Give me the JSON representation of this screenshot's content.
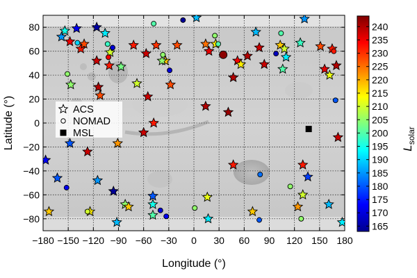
{
  "chart_data": {
    "type": "scatter",
    "xlabel": "Longitude (°)",
    "ylabel": "Latitude (°)",
    "xlim": [
      -180,
      180
    ],
    "ylim": [
      -90,
      90
    ],
    "xticks": [
      -180,
      -150,
      -120,
      -90,
      -60,
      -30,
      0,
      30,
      60,
      90,
      120,
      150,
      180
    ],
    "yticks": [
      -80,
      -60,
      -40,
      -20,
      0,
      20,
      40,
      60,
      80
    ],
    "grid": true,
    "background": "Mars topographic map (shaded relief)",
    "colorbar": {
      "label": "L",
      "label_sub": "solar",
      "min": 163,
      "max": 244,
      "ticks": [
        165,
        170,
        175,
        180,
        185,
        190,
        195,
        200,
        205,
        210,
        215,
        220,
        225,
        230,
        235,
        240
      ],
      "colormap": "jet"
    },
    "legend": {
      "placement": "center-left",
      "entries": [
        {
          "label": "ACS",
          "marker": "star"
        },
        {
          "label": "NOMAD",
          "marker": "circle"
        },
        {
          "label": "MSL",
          "marker": "square"
        }
      ]
    },
    "series": [
      {
        "name": "ACS",
        "marker": "star",
        "points": [
          {
            "lon": -158,
            "lat": 72,
            "ls": 185
          },
          {
            "lon": -154,
            "lat": 77,
            "ls": 195
          },
          {
            "lon": -148,
            "lat": 68,
            "ls": 235
          },
          {
            "lon": -140,
            "lat": 79,
            "ls": 172
          },
          {
            "lon": -135,
            "lat": 62,
            "ls": 232
          },
          {
            "lon": -131,
            "lat": 66,
            "ls": 228
          },
          {
            "lon": -116,
            "lat": 80,
            "ls": 166
          },
          {
            "lon": -106,
            "lat": 75,
            "ls": 192
          },
          {
            "lon": -100,
            "lat": 59,
            "ls": 210
          },
          {
            "lon": -116,
            "lat": 52,
            "ls": 238
          },
          {
            "lon": -101,
            "lat": 48,
            "ls": 232
          },
          {
            "lon": -87,
            "lat": 47,
            "ls": 203
          },
          {
            "lon": -72,
            "lat": 65,
            "ls": 232
          },
          {
            "lon": -57,
            "lat": 58,
            "ls": 238
          },
          {
            "lon": -45,
            "lat": 65,
            "ls": 230
          },
          {
            "lon": -34,
            "lat": 52,
            "ls": 218
          },
          {
            "lon": -20,
            "lat": 65,
            "ls": 228
          },
          {
            "lon": 3,
            "lat": 88,
            "ls": 188
          },
          {
            "lon": 14,
            "lat": 66,
            "ls": 225
          },
          {
            "lon": 18,
            "lat": 60,
            "ls": 236
          },
          {
            "lon": 26,
            "lat": 66,
            "ls": 215
          },
          {
            "lon": 47,
            "lat": 38,
            "ls": 240
          },
          {
            "lon": 52,
            "lat": 52,
            "ls": 235
          },
          {
            "lon": 56,
            "lat": 49,
            "ls": 215
          },
          {
            "lon": 64,
            "lat": 56,
            "ls": 240
          },
          {
            "lon": 74,
            "lat": 76,
            "ls": 188
          },
          {
            "lon": 78,
            "lat": 63,
            "ls": 238
          },
          {
            "lon": 84,
            "lat": 49,
            "ls": 238
          },
          {
            "lon": 103,
            "lat": 65,
            "ls": 218
          },
          {
            "lon": 108,
            "lat": 62,
            "ls": 210
          },
          {
            "lon": 106,
            "lat": 45,
            "ls": 200
          },
          {
            "lon": 110,
            "lat": 55,
            "ls": 192
          },
          {
            "lon": 127,
            "lat": 67,
            "ls": 198
          },
          {
            "lon": 132,
            "lat": 87,
            "ls": 185
          },
          {
            "lon": 151,
            "lat": 64,
            "ls": 228
          },
          {
            "lon": 156,
            "lat": 45,
            "ls": 236
          },
          {
            "lon": 162,
            "lat": 40,
            "ls": 212
          },
          {
            "lon": 165,
            "lat": 62,
            "ls": 232
          },
          {
            "lon": 170,
            "lat": 48,
            "ls": 240
          },
          {
            "lon": -147,
            "lat": 32,
            "ls": 205
          },
          {
            "lon": -114,
            "lat": 30,
            "ls": 240
          },
          {
            "lon": -112,
            "lat": 23,
            "ls": 228
          },
          {
            "lon": -68,
            "lat": 33,
            "ls": 210
          },
          {
            "lon": -55,
            "lat": 22,
            "ls": 238
          },
          {
            "lon": -38,
            "lat": 52,
            "ls": 205
          },
          {
            "lon": -28,
            "lat": 32,
            "ls": 228
          },
          {
            "lon": 14,
            "lat": 14,
            "ls": 240
          },
          {
            "lon": 41,
            "lat": 9,
            "ls": 242
          },
          {
            "lon": -60,
            "lat": -8,
            "ls": 238
          },
          {
            "lon": -48,
            "lat": 0,
            "ls": 232
          },
          {
            "lon": -148,
            "lat": -17,
            "ls": 180
          },
          {
            "lon": -91,
            "lat": -17,
            "ls": 222
          },
          {
            "lon": -127,
            "lat": -24,
            "ls": 238
          },
          {
            "lon": 172,
            "lat": -12,
            "ls": 238
          },
          {
            "lon": -177,
            "lat": -31,
            "ls": 172
          },
          {
            "lon": -163,
            "lat": -46,
            "ls": 180
          },
          {
            "lon": -115,
            "lat": -48,
            "ls": 185
          },
          {
            "lon": -96,
            "lat": -57,
            "ls": 165
          },
          {
            "lon": 47,
            "lat": -35,
            "ls": 232
          },
          {
            "lon": 130,
            "lat": -35,
            "ls": 232
          },
          {
            "lon": 136,
            "lat": -45,
            "ls": 178
          },
          {
            "lon": -173,
            "lat": -74,
            "ls": 218
          },
          {
            "lon": -124,
            "lat": -74,
            "ls": 215
          },
          {
            "lon": -92,
            "lat": -83,
            "ls": 188
          },
          {
            "lon": -82,
            "lat": -68,
            "ls": 205
          },
          {
            "lon": -78,
            "lat": -70,
            "ls": 218
          },
          {
            "lon": -49,
            "lat": -61,
            "ls": 180
          },
          {
            "lon": -49,
            "lat": -68,
            "ls": 195
          },
          {
            "lon": -49,
            "lat": -77,
            "ls": 200
          },
          {
            "lon": 16,
            "lat": -62,
            "ls": 212
          },
          {
            "lon": 17,
            "lat": -80,
            "ls": 192
          },
          {
            "lon": 70,
            "lat": -74,
            "ls": 218
          },
          {
            "lon": 124,
            "lat": -70,
            "ls": 222
          },
          {
            "lon": 130,
            "lat": -60,
            "ls": 210
          },
          {
            "lon": 161,
            "lat": -68,
            "ls": 188
          },
          {
            "lon": 177,
            "lat": -83,
            "ls": 192
          }
        ]
      },
      {
        "name": "NOMAD",
        "marker": "circle",
        "points": [
          {
            "lon": -139,
            "lat": 67,
            "ls": 190
          },
          {
            "lon": -103,
            "lat": 66,
            "ls": 198
          },
          {
            "lon": -97,
            "lat": 63,
            "ls": 170
          },
          {
            "lon": -48,
            "lat": 83,
            "ls": 200
          },
          {
            "lon": -13,
            "lat": 86,
            "ls": 165
          },
          {
            "lon": 25,
            "lat": 73,
            "ls": 205
          },
          {
            "lon": 29,
            "lat": 66,
            "ls": 200
          },
          {
            "lon": 35,
            "lat": 57,
            "ls": 243
          },
          {
            "lon": 98,
            "lat": 58,
            "ls": 168
          },
          {
            "lon": 104,
            "lat": 75,
            "ls": 200
          },
          {
            "lon": 167,
            "lat": 60,
            "ls": 232
          },
          {
            "lon": -151,
            "lat": 41,
            "ls": 205
          },
          {
            "lon": -102,
            "lat": 55,
            "ls": 235
          },
          {
            "lon": -37,
            "lat": 57,
            "ls": 205
          },
          {
            "lon": -29,
            "lat": 44,
            "ls": 170
          },
          {
            "lon": 169,
            "lat": 19,
            "ls": 180
          },
          {
            "lon": -152,
            "lat": -54,
            "ls": 172
          },
          {
            "lon": -127,
            "lat": -74,
            "ls": 210
          },
          {
            "lon": -40,
            "lat": -73,
            "ls": 170
          },
          {
            "lon": -33,
            "lat": -78,
            "ls": 172
          },
          {
            "lon": 1,
            "lat": -71,
            "ls": 205
          },
          {
            "lon": 79,
            "lat": -43,
            "ls": 182
          },
          {
            "lon": 78,
            "lat": -81,
            "ls": 180
          },
          {
            "lon": 115,
            "lat": -53,
            "ls": 205
          },
          {
            "lon": 128,
            "lat": -80,
            "ls": 205
          }
        ]
      },
      {
        "name": "MSL",
        "marker": "square",
        "points": [
          {
            "lon": 137,
            "lat": -5
          }
        ]
      }
    ]
  }
}
